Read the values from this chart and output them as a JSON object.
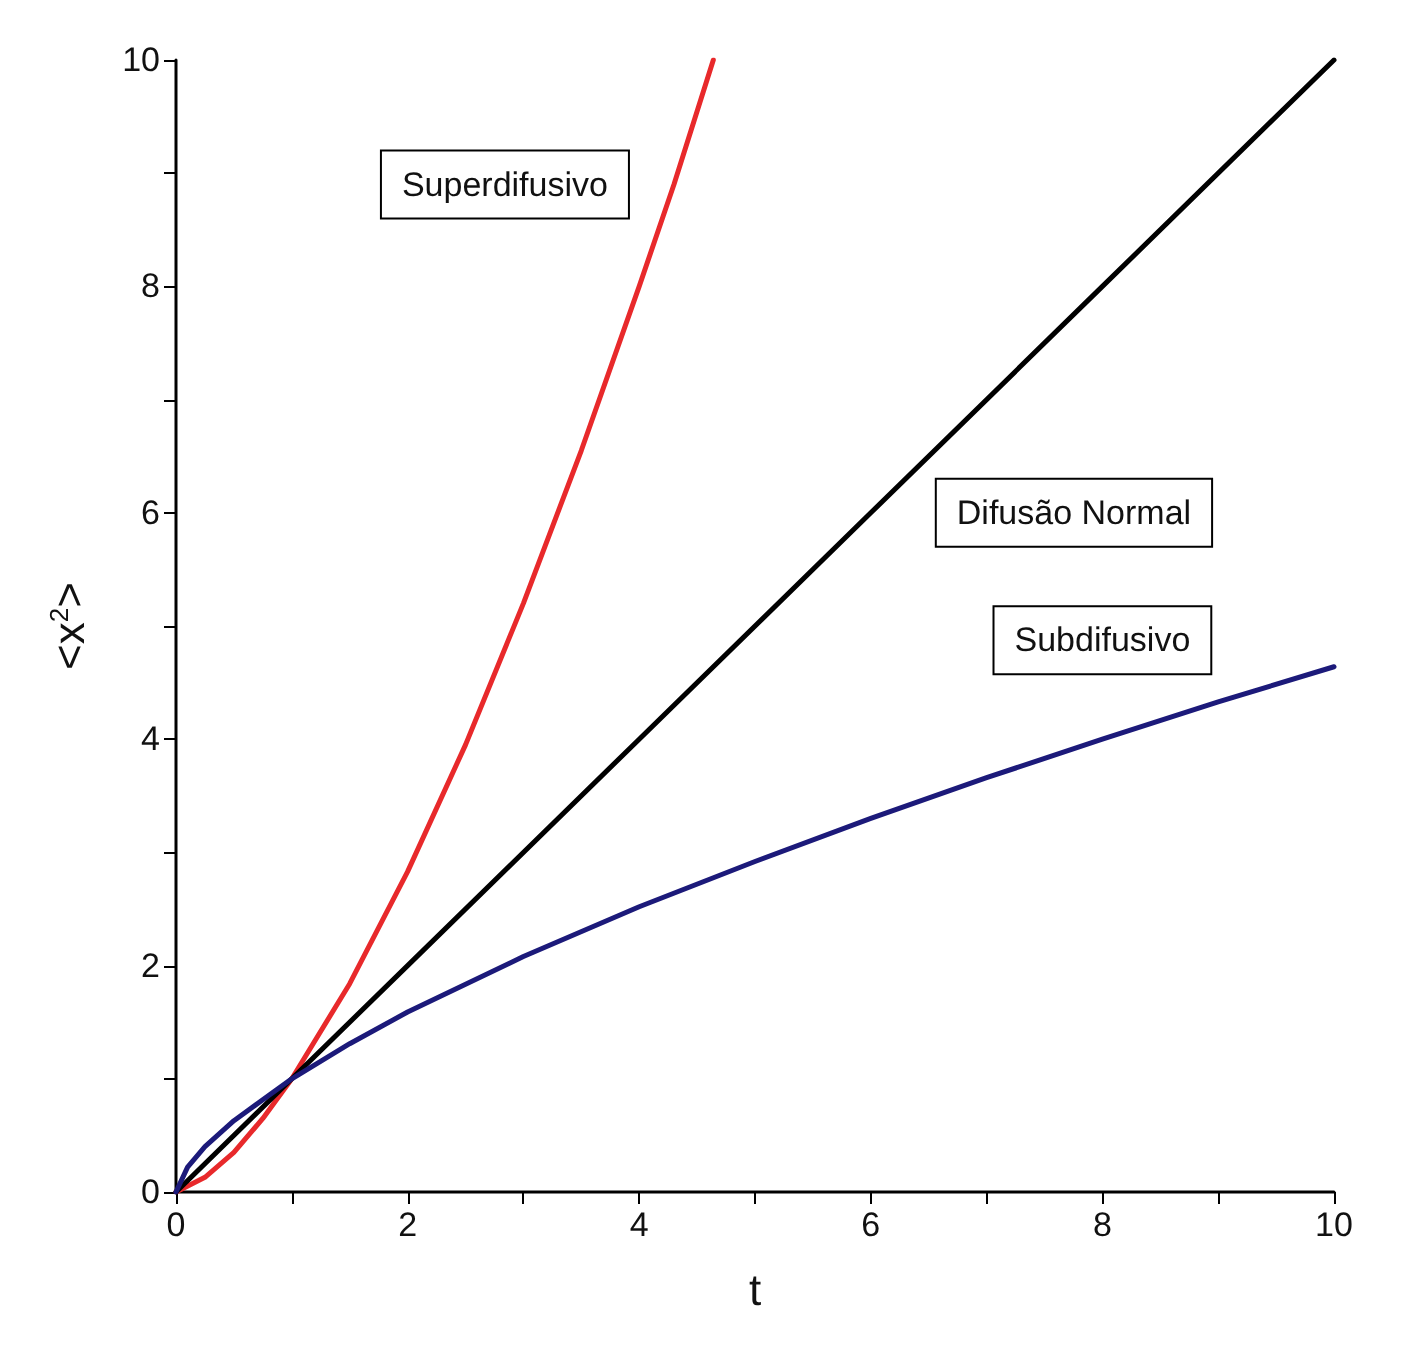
{
  "chart_data": {
    "type": "line",
    "xlabel": "t",
    "ylabel": "<x$^{2}$>",
    "xlim": [
      0,
      10
    ],
    "ylim": [
      0,
      10
    ],
    "xticks": [
      0,
      {
        "value": 1,
        "label": null
      },
      2,
      {
        "value": 3,
        "label": null
      },
      4,
      {
        "value": 5,
        "label": null
      },
      6,
      {
        "value": 7,
        "label": null
      },
      8,
      {
        "value": 9,
        "label": null
      },
      10
    ],
    "yticks": [
      0,
      {
        "value": 1,
        "label": null
      },
      2,
      {
        "value": 3,
        "label": null
      },
      4,
      {
        "value": 5,
        "label": null
      },
      6,
      {
        "value": 7,
        "label": null
      },
      8,
      {
        "value": 9,
        "label": null
      },
      10
    ],
    "grid": false,
    "legend": false,
    "marker": "none",
    "line_style": "solid",
    "series": [
      {
        "name": "Superdifusivo",
        "color": "#e8292b",
        "x": [
          0,
          0.25,
          0.5,
          0.75,
          1,
          1.5,
          2,
          2.5,
          3,
          3.5,
          4,
          4.3,
          4.64
        ],
        "values": [
          0,
          0.13,
          0.35,
          0.65,
          1,
          1.84,
          2.83,
          3.95,
          5.2,
          6.55,
          8,
          8.9,
          10
        ]
      },
      {
        "name": "Difusão Normal",
        "color": "#000000",
        "x": [
          0,
          1,
          2,
          4,
          6,
          8,
          10
        ],
        "values": [
          0,
          1,
          2,
          4,
          6,
          8,
          10
        ]
      },
      {
        "name": "Subdifusivo",
        "color": "#1c1a7a",
        "x": [
          0,
          0.1,
          0.25,
          0.5,
          1,
          1.5,
          2,
          3,
          4,
          5,
          6,
          7,
          8,
          9,
          10
        ],
        "values": [
          0,
          0.22,
          0.4,
          0.63,
          1,
          1.31,
          1.59,
          2.08,
          2.52,
          2.92,
          3.3,
          3.66,
          4,
          4.33,
          4.64
        ]
      }
    ]
  }
}
